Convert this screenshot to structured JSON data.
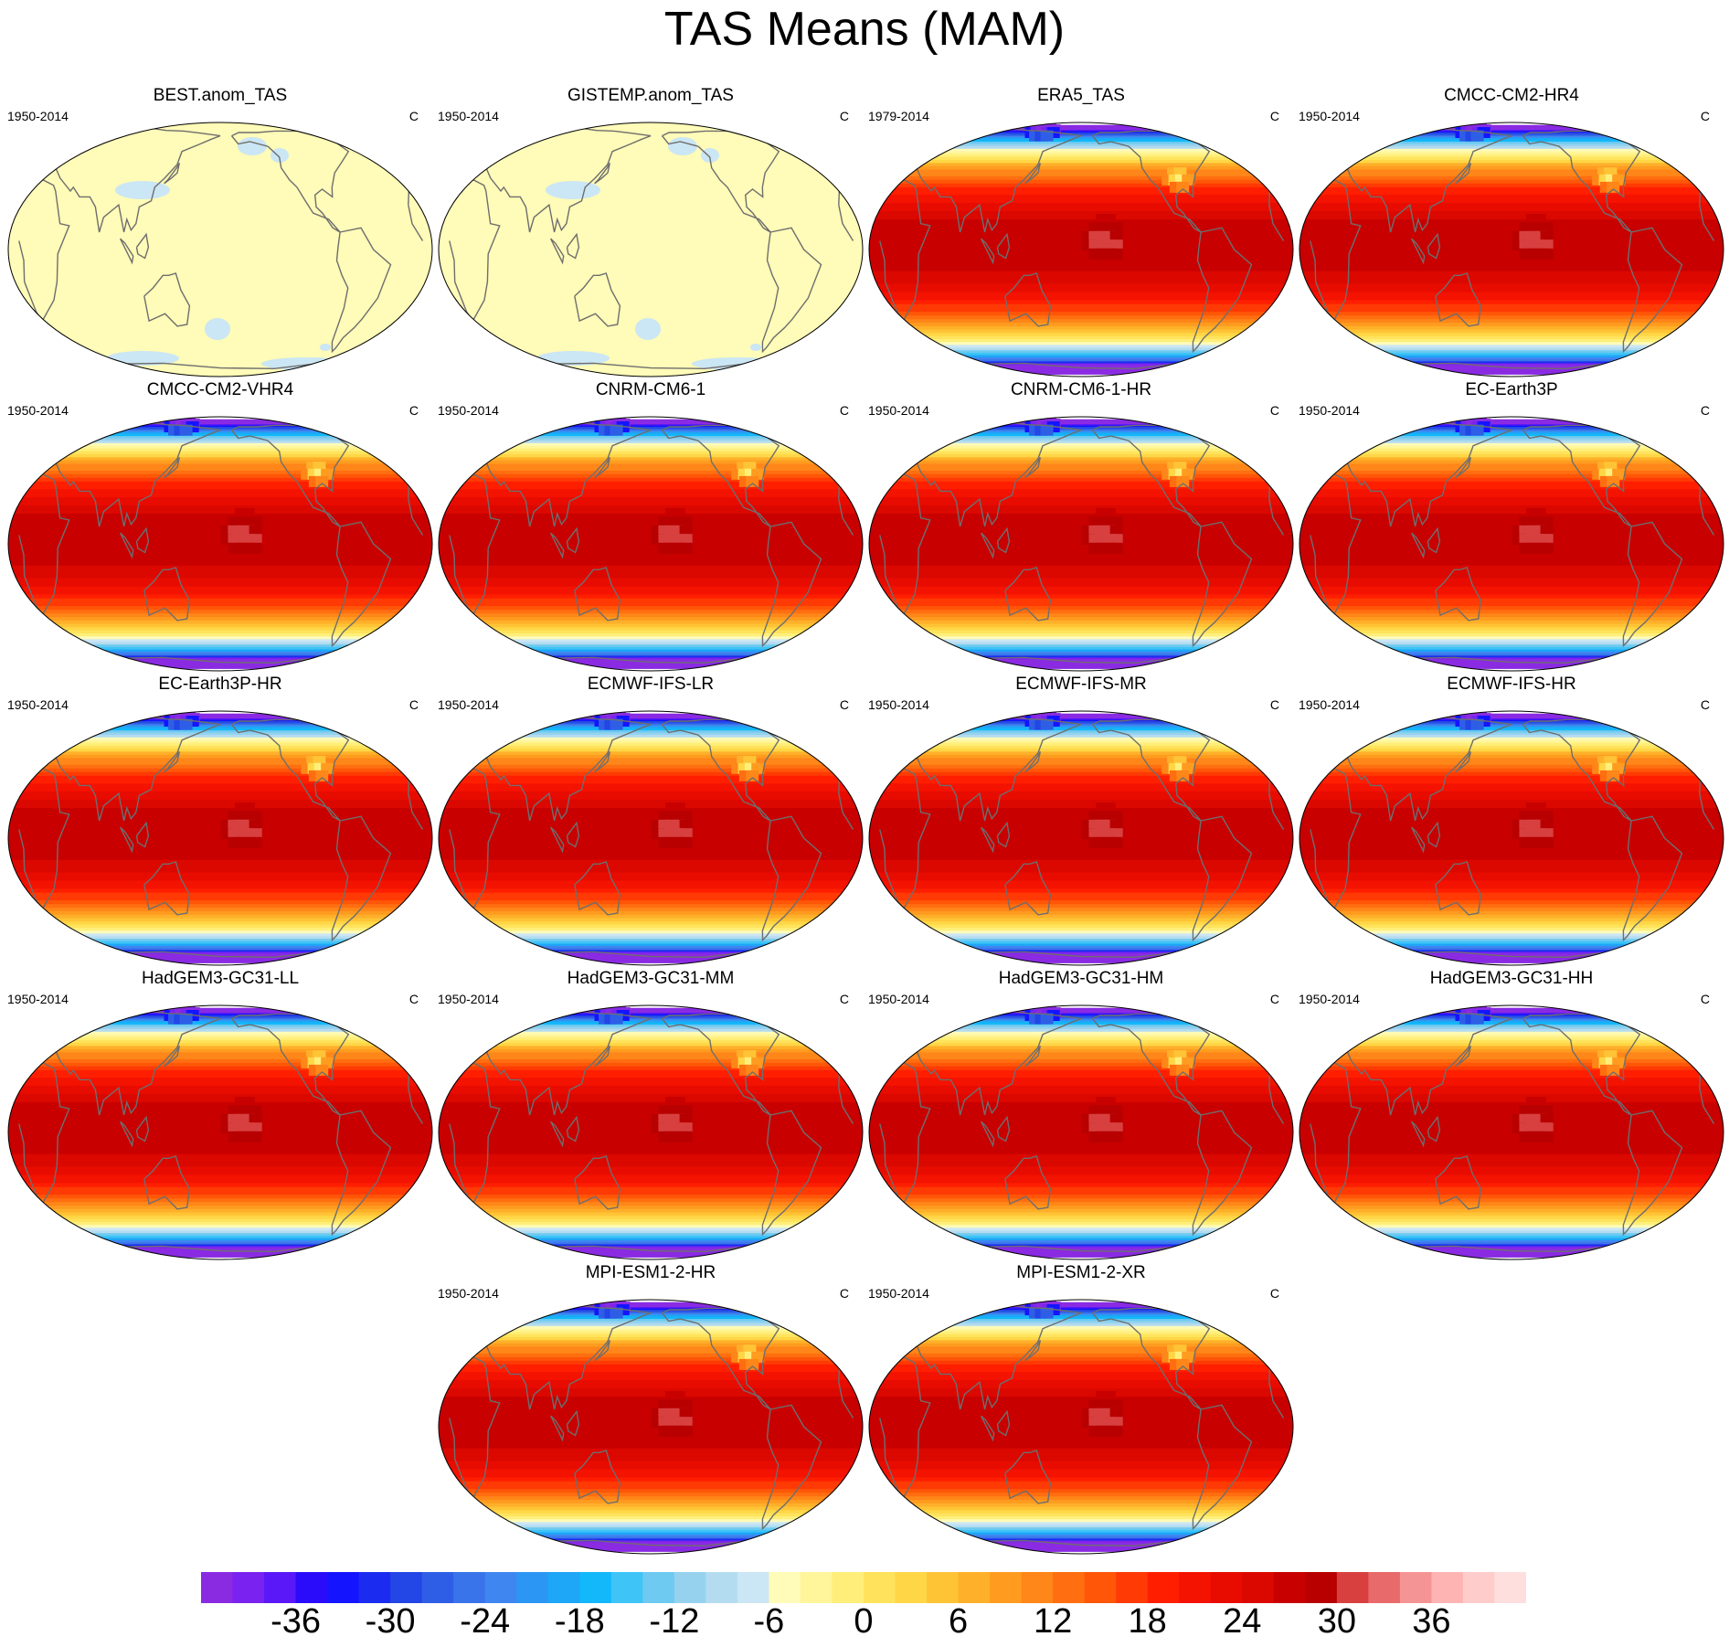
{
  "figure": {
    "title": "TAS Means (MAM)"
  },
  "panels": [
    {
      "title": "BEST.anom_TAS",
      "period": "1950-2014",
      "units": "C",
      "kind": "anomaly",
      "row": 0,
      "col": 0
    },
    {
      "title": "GISTEMP.anom_TAS",
      "period": "1950-2014",
      "units": "C",
      "kind": "anomaly",
      "row": 0,
      "col": 1
    },
    {
      "title": "ERA5_TAS",
      "period": "1979-2014",
      "units": "C",
      "kind": "mean",
      "row": 0,
      "col": 2
    },
    {
      "title": "CMCC-CM2-HR4",
      "period": "1950-2014",
      "units": "C",
      "kind": "mean",
      "row": 0,
      "col": 3
    },
    {
      "title": "CMCC-CM2-VHR4",
      "period": "1950-2014",
      "units": "C",
      "kind": "mean",
      "row": 1,
      "col": 0
    },
    {
      "title": "CNRM-CM6-1",
      "period": "1950-2014",
      "units": "C",
      "kind": "mean",
      "row": 1,
      "col": 1
    },
    {
      "title": "CNRM-CM6-1-HR",
      "period": "1950-2014",
      "units": "C",
      "kind": "mean",
      "row": 1,
      "col": 2
    },
    {
      "title": "EC-Earth3P",
      "period": "1950-2014",
      "units": "C",
      "kind": "mean",
      "row": 1,
      "col": 3
    },
    {
      "title": "EC-Earth3P-HR",
      "period": "1950-2014",
      "units": "C",
      "kind": "mean",
      "row": 2,
      "col": 0
    },
    {
      "title": "ECMWF-IFS-LR",
      "period": "1950-2014",
      "units": "C",
      "kind": "mean",
      "row": 2,
      "col": 1
    },
    {
      "title": "ECMWF-IFS-MR",
      "period": "1950-2014",
      "units": "C",
      "kind": "mean",
      "row": 2,
      "col": 2
    },
    {
      "title": "ECMWF-IFS-HR",
      "period": "1950-2014",
      "units": "C",
      "kind": "mean",
      "row": 2,
      "col": 3
    },
    {
      "title": "HadGEM3-GC31-LL",
      "period": "1950-2014",
      "units": "C",
      "kind": "mean",
      "row": 3,
      "col": 0
    },
    {
      "title": "HadGEM3-GC31-MM",
      "period": "1950-2014",
      "units": "C",
      "kind": "mean",
      "row": 3,
      "col": 1
    },
    {
      "title": "HadGEM3-GC31-HM",
      "period": "1950-2014",
      "units": "C",
      "kind": "mean",
      "row": 3,
      "col": 2
    },
    {
      "title": "HadGEM3-GC31-HH",
      "period": "1950-2014",
      "units": "C",
      "kind": "mean",
      "row": 3,
      "col": 3
    },
    {
      "title": "MPI-ESM1-2-HR",
      "period": "1950-2014",
      "units": "C",
      "kind": "mean",
      "row": 4,
      "col": 1
    },
    {
      "title": "MPI-ESM1-2-XR",
      "period": "1950-2014",
      "units": "C",
      "kind": "mean",
      "row": 4,
      "col": 2
    }
  ],
  "colorbar": {
    "min": -42,
    "max": 42,
    "step": 2,
    "tick_labels": [
      "-36",
      "-30",
      "-24",
      "-18",
      "-12",
      "-6",
      "0",
      "6",
      "12",
      "18",
      "24",
      "30",
      "36"
    ],
    "colors": [
      "#8a2be2",
      "#7a22f0",
      "#5a18f8",
      "#2a0cfa",
      "#1414ff",
      "#1b2cf0",
      "#2346e6",
      "#2f5ee6",
      "#3a74ea",
      "#3f86f0",
      "#2c96f4",
      "#1ea6f7",
      "#12b8fa",
      "#3ec4f7",
      "#6ecaf0",
      "#96d2ee",
      "#b4dcf0",
      "#cbe6f4",
      "#fffbb8",
      "#fff59a",
      "#ffef7a",
      "#ffe35c",
      "#ffd646",
      "#ffc436",
      "#ffb02a",
      "#ff9c20",
      "#ff8618",
      "#ff6e10",
      "#ff5608",
      "#ff3a04",
      "#ff1f00",
      "#f41200",
      "#e80c00",
      "#db0800",
      "#c80000",
      "#b80000",
      "#d84040",
      "#e86a6a",
      "#f49494",
      "#ffb4b4",
      "#ffcccc",
      "#ffdede"
    ]
  }
}
